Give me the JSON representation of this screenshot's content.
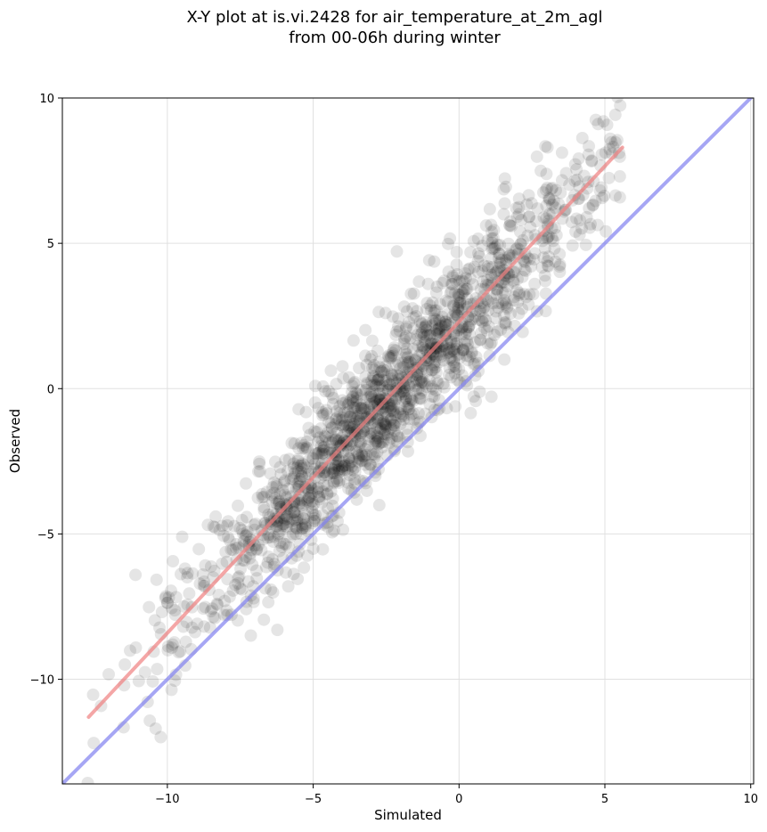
{
  "chart_data": {
    "type": "scatter",
    "title": "X-Y plot at is.vi.2428 for air_temperature_at_2m_agl",
    "subtitle": "from 00-06h during winter",
    "xlabel": "Simulated",
    "ylabel": "Observed",
    "xlim": [
      -13.6,
      10.1
    ],
    "ylim": [
      -13.6,
      10.0
    ],
    "grid": true,
    "x_ticks": [
      -10,
      -5,
      0,
      5,
      10
    ],
    "y_ticks": [
      -10,
      -5,
      0,
      5,
      10
    ],
    "x_tick_labels": [
      "−10",
      "−5",
      "0",
      "5",
      "10"
    ],
    "y_tick_labels": [
      "−10",
      "−5",
      "0",
      "5",
      "10"
    ],
    "colors": {
      "points": "#000000",
      "fit_line": "#f08080",
      "identity_line": "#8080f0",
      "grid": "#e0e0e0"
    },
    "point_alpha": 0.1,
    "fit_line": {
      "x": [
        -12.7,
        5.6
      ],
      "y": [
        -11.3,
        8.3
      ]
    },
    "identity_line": {
      "x": [
        -13.6,
        10.1
      ],
      "y": [
        -13.6,
        10.1
      ]
    },
    "fit_model": {
      "slope": 1.07,
      "intercept": 2.3,
      "noise_sd": 1.2,
      "x_mean": -2.5,
      "x_sd": 3.6,
      "n_points": 1600
    }
  }
}
